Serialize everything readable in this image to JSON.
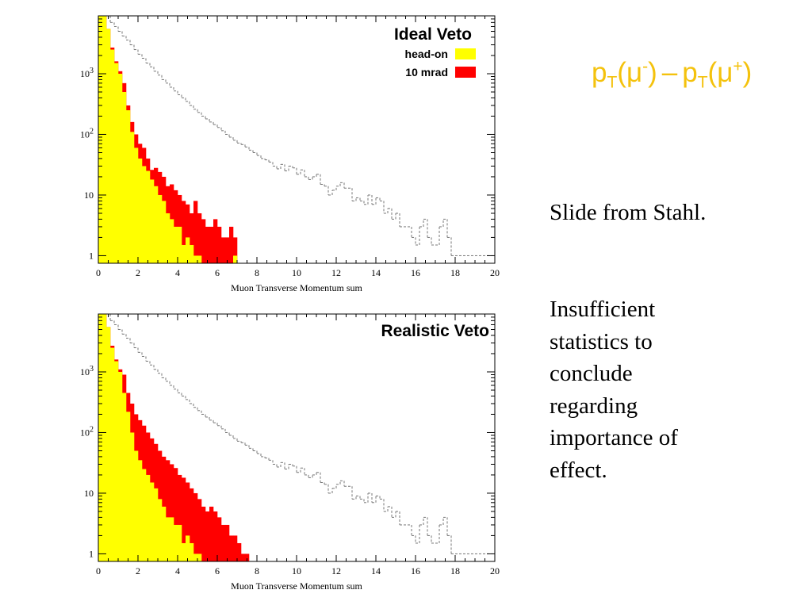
{
  "slide": {
    "title": {
      "p1": "p",
      "sub1": "T",
      "mu1": "(μ",
      "sup1": "-",
      "close1": ")",
      "dash": "–",
      "p2": "p",
      "sub2": "T",
      "mu2": "(μ",
      "sup2": "+",
      "close2": ")"
    },
    "source_note": "Slide from Stahl.",
    "body_lines": [
      "Insufficient",
      "statistics to",
      "conclude",
      "regarding",
      "importance of",
      "effect."
    ],
    "title_color": "#f4c20d"
  },
  "chart_data": [
    {
      "type": "bar",
      "histogram": true,
      "panel_title": "Ideal Veto",
      "xlabel": "Muon Transverse Momentum sum",
      "ylabel": "",
      "x_ticks": [
        "0",
        "2",
        "4",
        "6",
        "8",
        "10",
        "12",
        "14",
        "16",
        "18",
        "20"
      ],
      "xlim": [
        0,
        20
      ],
      "y_scale": "log",
      "ylim": [
        0.75,
        9000
      ],
      "y_ticks": [
        {
          "value": 1,
          "base": "1",
          "exp": ""
        },
        {
          "value": 10,
          "base": "10",
          "exp": ""
        },
        {
          "value": 100,
          "base": "10",
          "exp": "2"
        },
        {
          "value": 1000,
          "base": "10",
          "exp": "3"
        }
      ],
      "legend_position": "top-right",
      "bin_width": 0.2,
      "series": [
        {
          "name": "10 mrad",
          "color": "#ff0000",
          "style": "filled",
          "values": [
            9000,
            9000,
            5500,
            2700,
            1600,
            1100,
            700,
            300,
            160,
            100,
            70,
            60,
            40,
            26,
            28,
            24,
            20,
            14,
            15,
            12,
            10,
            8,
            7,
            5,
            8,
            5,
            4,
            3,
            3,
            4,
            3,
            2,
            2,
            3,
            2,
            0,
            0,
            0,
            0,
            0,
            0,
            0,
            0,
            0,
            0,
            0,
            0,
            0,
            0,
            0,
            0,
            0,
            0,
            0,
            0,
            0,
            0,
            0,
            0,
            0,
            0,
            0,
            0,
            0,
            0,
            0,
            0,
            0,
            0,
            0,
            0,
            0,
            0,
            0,
            0,
            0,
            0,
            0,
            0,
            0,
            0,
            0,
            0,
            0,
            0,
            0,
            0,
            0,
            0,
            0,
            0,
            0,
            0,
            0,
            0,
            0,
            0,
            0,
            0,
            0
          ]
        },
        {
          "name": "head-on",
          "color": "#ffff00",
          "style": "filled",
          "values": [
            9000,
            9000,
            5500,
            2500,
            1500,
            1000,
            500,
            250,
            110,
            60,
            40,
            30,
            25,
            18,
            14,
            10,
            8,
            5,
            4,
            3,
            3,
            1.5,
            2,
            1.5,
            1,
            1,
            0,
            0,
            0,
            0,
            0,
            0,
            0,
            0,
            1,
            0,
            0,
            0,
            0,
            0,
            0,
            0,
            0,
            0,
            0,
            0,
            0,
            0,
            0,
            0,
            0,
            0,
            0,
            0,
            0,
            0,
            0,
            0,
            0,
            0,
            0,
            0,
            0,
            0,
            0,
            0,
            0,
            0,
            0,
            0,
            0,
            0,
            0,
            0,
            0,
            0,
            0,
            0,
            0,
            0,
            0,
            0,
            0,
            0,
            0,
            0,
            0,
            0,
            0,
            0,
            0,
            0,
            0,
            0,
            0,
            0,
            0,
            0,
            0,
            0
          ]
        },
        {
          "name": "",
          "color": "#777777",
          "style": "dashed",
          "values": [
            9000,
            9000,
            9000,
            7000,
            6000,
            5000,
            4200,
            3600,
            3000,
            2500,
            2100,
            1800,
            1500,
            1300,
            1100,
            950,
            800,
            700,
            600,
            520,
            450,
            400,
            350,
            300,
            260,
            230,
            200,
            180,
            160,
            145,
            130,
            115,
            100,
            90,
            80,
            72,
            68,
            62,
            55,
            50,
            45,
            40,
            38,
            35,
            30,
            27,
            32,
            25,
            30,
            28,
            22,
            26,
            20,
            18,
            20,
            22,
            15,
            14,
            10,
            12,
            14,
            16,
            13,
            13,
            8,
            9,
            8,
            7,
            10,
            7,
            9,
            8,
            5,
            6,
            4,
            5,
            3,
            3,
            3,
            2,
            1.5,
            3,
            4,
            2,
            1.5,
            1.5,
            3,
            4,
            2,
            1,
            1,
            1,
            1,
            1,
            1,
            1,
            1,
            1,
            1,
            1
          ]
        }
      ]
    },
    {
      "type": "bar",
      "histogram": true,
      "panel_title": "Realistic Veto",
      "xlabel": "Muon Transverse Momentum sum",
      "ylabel": "",
      "x_ticks": [
        "0",
        "2",
        "4",
        "6",
        "8",
        "10",
        "12",
        "14",
        "16",
        "18",
        "20"
      ],
      "xlim": [
        0,
        20
      ],
      "y_scale": "log",
      "ylim": [
        0.75,
        9000
      ],
      "y_ticks": [
        {
          "value": 1,
          "base": "1",
          "exp": ""
        },
        {
          "value": 10,
          "base": "10",
          "exp": ""
        },
        {
          "value": 100,
          "base": "10",
          "exp": "2"
        },
        {
          "value": 1000,
          "base": "10",
          "exp": "3"
        }
      ],
      "bin_width": 0.2,
      "series": [
        {
          "name": "",
          "color": "#ff0000",
          "style": "filled",
          "values": [
            9000,
            9000,
            5500,
            2700,
            1600,
            1100,
            900,
            450,
            300,
            200,
            160,
            130,
            100,
            80,
            65,
            50,
            40,
            35,
            30,
            26,
            20,
            18,
            15,
            12,
            10,
            8,
            6,
            5,
            6,
            5,
            4,
            3,
            3,
            2,
            2,
            1.5,
            1,
            1,
            0,
            0,
            0,
            0,
            0,
            0,
            0,
            0,
            0,
            0,
            0,
            0,
            0,
            0,
            0,
            0,
            0,
            0,
            0,
            0,
            0,
            0,
            0,
            0,
            0,
            0,
            0,
            0,
            0,
            0,
            0,
            0,
            0,
            0,
            0,
            0,
            0,
            0,
            0,
            0,
            0,
            0,
            0,
            0,
            0,
            0,
            0,
            0,
            0,
            0,
            0,
            0,
            0,
            0,
            0,
            0,
            0,
            0,
            0,
            0,
            0,
            0
          ]
        },
        {
          "name": "",
          "color": "#ffff00",
          "style": "filled",
          "values": [
            9000,
            9000,
            5500,
            2500,
            1500,
            1000,
            450,
            220,
            100,
            50,
            35,
            25,
            20,
            15,
            12,
            8,
            6,
            4,
            4,
            3,
            3,
            1.5,
            2,
            1.5,
            1,
            1,
            0,
            0,
            0,
            0,
            0,
            0,
            0,
            0,
            0,
            0,
            0,
            0,
            0,
            0,
            0,
            0,
            0,
            0,
            0,
            0,
            0,
            0,
            0,
            0,
            0,
            0,
            0,
            0,
            0,
            0,
            0,
            0,
            0,
            0,
            0,
            0,
            0,
            0,
            0,
            0,
            0,
            0,
            0,
            0,
            0,
            0,
            0,
            0,
            0,
            0,
            0,
            0,
            0,
            0,
            0,
            0,
            0,
            0,
            0,
            0,
            0,
            0,
            0,
            0,
            0,
            0,
            0,
            0,
            0,
            0,
            0,
            0,
            0,
            0
          ]
        },
        {
          "name": "",
          "color": "#777777",
          "style": "dashed",
          "values": [
            9000,
            9000,
            9000,
            7000,
            6000,
            5000,
            4200,
            3600,
            3000,
            2500,
            2100,
            1800,
            1500,
            1300,
            1100,
            950,
            800,
            700,
            600,
            520,
            450,
            400,
            350,
            300,
            260,
            230,
            200,
            180,
            160,
            145,
            130,
            115,
            100,
            90,
            80,
            72,
            68,
            62,
            55,
            50,
            45,
            40,
            38,
            35,
            30,
            27,
            32,
            25,
            30,
            28,
            22,
            26,
            20,
            18,
            20,
            22,
            15,
            14,
            10,
            12,
            14,
            16,
            13,
            13,
            8,
            9,
            8,
            7,
            10,
            7,
            9,
            8,
            5,
            6,
            4,
            5,
            3,
            3,
            3,
            2,
            1.5,
            3,
            4,
            2,
            1.5,
            1.5,
            3,
            4,
            2,
            1,
            1,
            1,
            1,
            1,
            1,
            1,
            1,
            1,
            1,
            1
          ]
        }
      ]
    }
  ]
}
